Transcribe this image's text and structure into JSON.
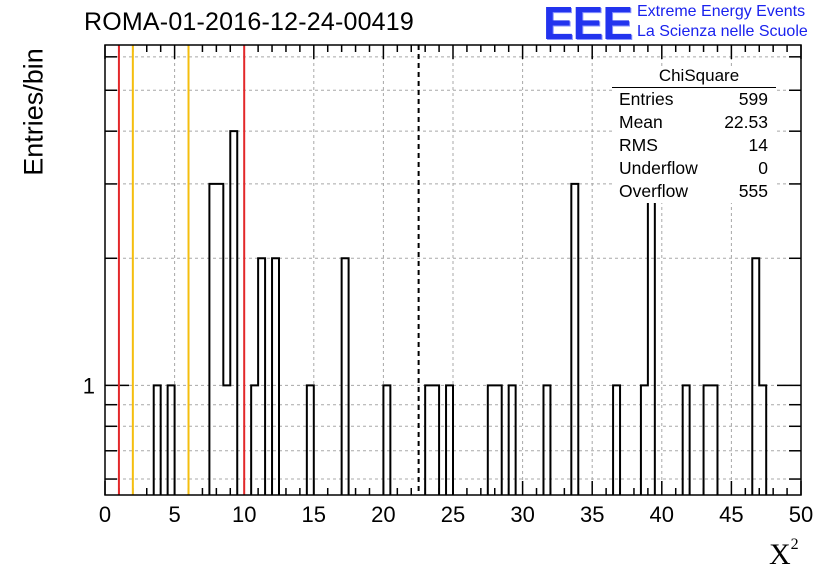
{
  "title": "ROMA-01-2016-12-24-00419",
  "brand": {
    "logo": "EEE",
    "line1": "Extreme Energy Events",
    "line2": "La Scienza nelle Scuole"
  },
  "stats": {
    "name": "ChiSquare",
    "rows": [
      {
        "label": "Entries",
        "value": "599"
      },
      {
        "label": "Mean",
        "value": "22.53"
      },
      {
        "label": "RMS",
        "value": "14"
      },
      {
        "label": "Underflow",
        "value": "0"
      },
      {
        "label": "Overflow",
        "value": "555"
      }
    ]
  },
  "chart_data": {
    "type": "histogram",
    "title": "ROMA-01-2016-12-24-00419",
    "xlabel": "X",
    "xlabel_superscript": "2",
    "ylabel": "Entries/bin",
    "xlim": [
      0,
      50
    ],
    "ylog": true,
    "ylim": [
      0.55,
      6.4
    ],
    "grid": true,
    "bin_width": 0.5,
    "x_ticks": [
      "0",
      "5",
      "10",
      "15",
      "20",
      "25",
      "30",
      "35",
      "40",
      "45",
      "50"
    ],
    "y_tick_labels": [
      "1"
    ],
    "bins": [
      {
        "x": 3.5,
        "count": 1
      },
      {
        "x": 4.5,
        "count": 1
      },
      {
        "x": 7.5,
        "count": 3
      },
      {
        "x": 8.0,
        "count": 3
      },
      {
        "x": 8.5,
        "count": 1
      },
      {
        "x": 9.0,
        "count": 4
      },
      {
        "x": 10.5,
        "count": 1
      },
      {
        "x": 11.0,
        "count": 2
      },
      {
        "x": 12.0,
        "count": 2
      },
      {
        "x": 14.5,
        "count": 1
      },
      {
        "x": 17.0,
        "count": 2
      },
      {
        "x": 20.0,
        "count": 1
      },
      {
        "x": 23.0,
        "count": 1
      },
      {
        "x": 23.5,
        "count": 1
      },
      {
        "x": 24.5,
        "count": 1
      },
      {
        "x": 27.5,
        "count": 1
      },
      {
        "x": 28.0,
        "count": 1
      },
      {
        "x": 29.0,
        "count": 1
      },
      {
        "x": 31.5,
        "count": 1
      },
      {
        "x": 33.5,
        "count": 3
      },
      {
        "x": 36.5,
        "count": 1
      },
      {
        "x": 38.5,
        "count": 1
      },
      {
        "x": 39.0,
        "count": 3
      },
      {
        "x": 41.5,
        "count": 1
      },
      {
        "x": 43.0,
        "count": 1
      },
      {
        "x": 43.5,
        "count": 1
      },
      {
        "x": 46.5,
        "count": 2
      },
      {
        "x": 47.0,
        "count": 1
      }
    ],
    "vertical_lines": [
      {
        "x": 1,
        "color": "#e3282a",
        "style": "solid"
      },
      {
        "x": 2,
        "color": "#f5be0e",
        "style": "solid"
      },
      {
        "x": 6,
        "color": "#f5be0e",
        "style": "solid"
      },
      {
        "x": 10,
        "color": "#e3282a",
        "style": "solid"
      },
      {
        "x": 22.53,
        "color": "#000000",
        "style": "dashed"
      }
    ]
  }
}
